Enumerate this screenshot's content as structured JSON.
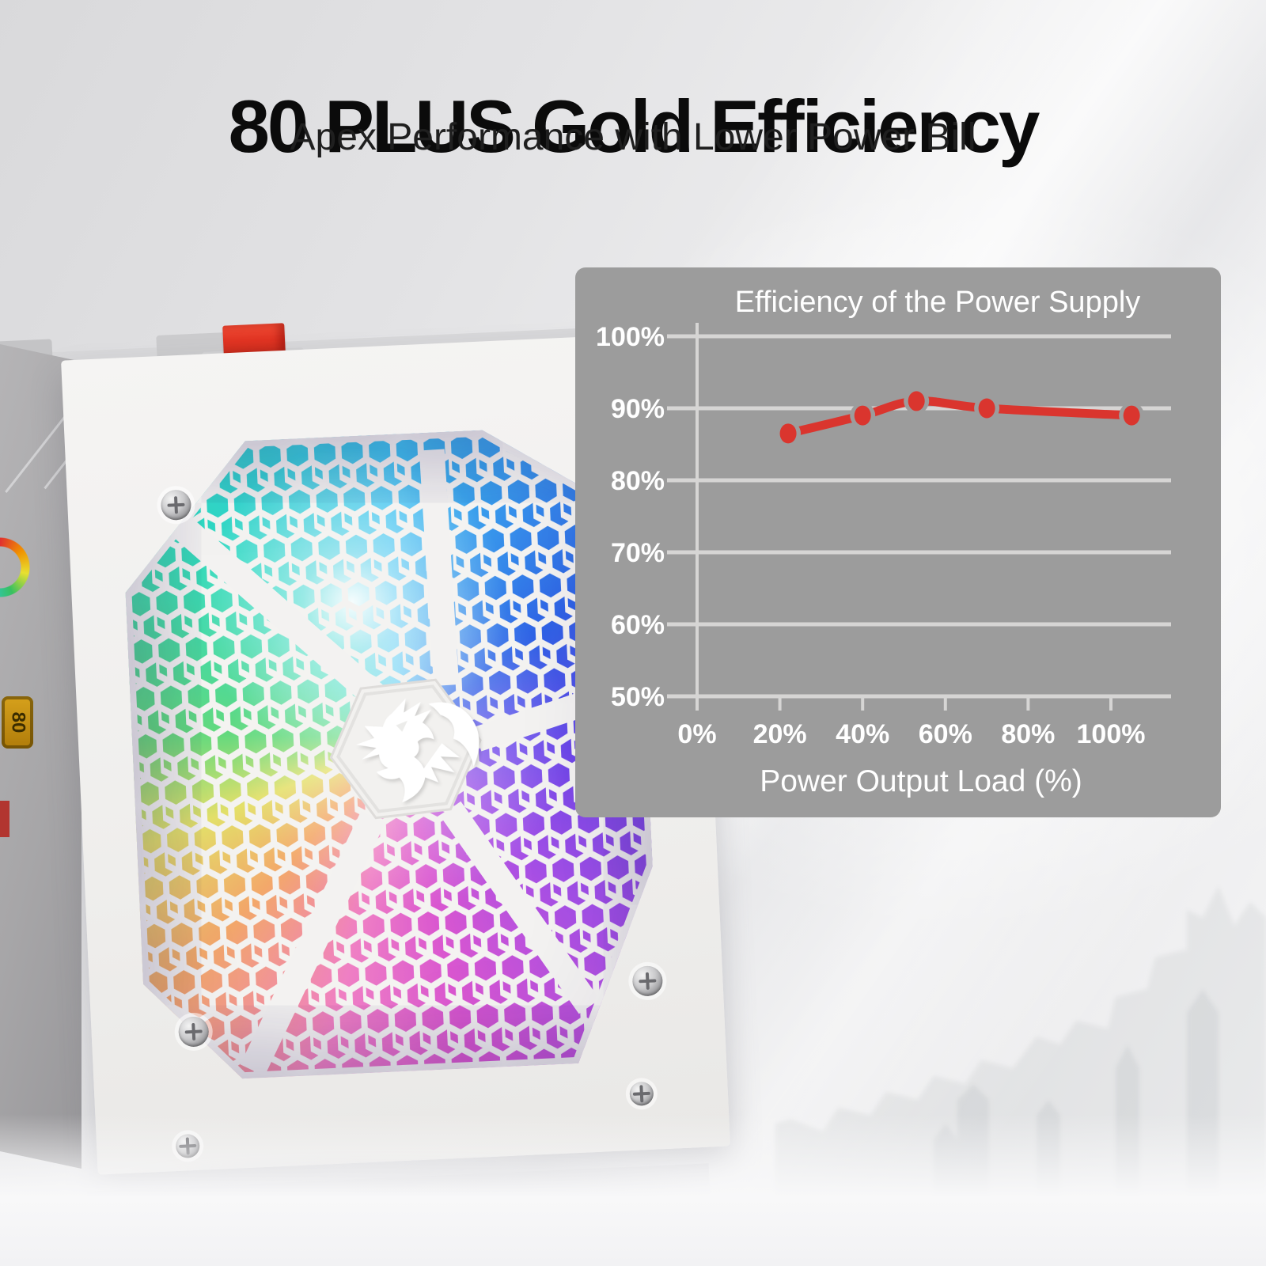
{
  "header": {
    "title": "80 PLUS Gold Efficiency",
    "subtitle": "Apex Performance with Lower Power Bill"
  },
  "chart_data": {
    "type": "line",
    "title": "Efficiency of the Power Supply",
    "xlabel": "Power Output Load (%)",
    "ylabel": "",
    "x_ticks": [
      0,
      20,
      40,
      60,
      80,
      100
    ],
    "y_ticks": [
      100,
      90,
      80,
      70,
      60,
      50
    ],
    "tick_suffix": "%",
    "xlim": [
      0,
      115
    ],
    "ylim": [
      50,
      103
    ],
    "grid": true,
    "legend_position": "none",
    "panel_color": "#9c9c9c",
    "grid_color": "#d6d5d4",
    "text_color": "#ffffff",
    "series": [
      {
        "name": "Efficiency",
        "color": "#da352e",
        "points": [
          {
            "x": 22,
            "y": 86.5
          },
          {
            "x": 40,
            "y": 89
          },
          {
            "x": 53,
            "y": 91
          },
          {
            "x": 70,
            "y": 90
          },
          {
            "x": 105,
            "y": 89
          }
        ]
      }
    ]
  },
  "product": {
    "description": "White RGB power supply with honeycomb fan grille",
    "badge_label": "80"
  },
  "icons": {
    "logo": "redragon-dragon",
    "power_switch": "red-rocker-switch",
    "screw": "phillips-screw",
    "rgb_ring": "rgb-color-ring"
  },
  "colors": {
    "accent_red": "#da352e",
    "chart_panel_gray": "#9c9c9c",
    "headline_black": "#0b0b0b"
  }
}
